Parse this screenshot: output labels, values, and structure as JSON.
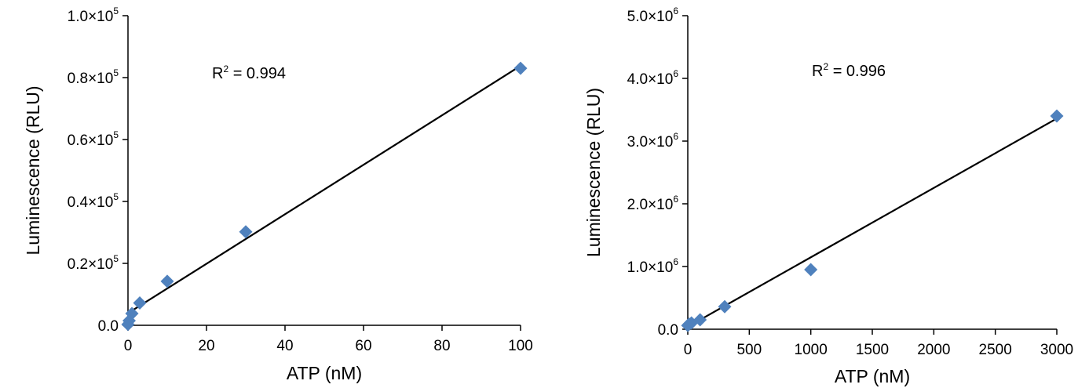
{
  "chart_data": [
    {
      "type": "scatter",
      "title": "",
      "xlabel": "ATP (nM)",
      "ylabel": "Luminescence (RLU)",
      "xlim": [
        0,
        100
      ],
      "ylim": [
        0,
        100000
      ],
      "x_ticks": [
        0,
        20,
        40,
        60,
        80,
        100
      ],
      "x_tick_labels": [
        "0",
        "20",
        "40",
        "60",
        "80",
        "100"
      ],
      "y_ticks": [
        0,
        20000,
        40000,
        60000,
        80000,
        100000
      ],
      "y_tick_mantissas": [
        "0.0",
        "0.2×10",
        "0.4×10",
        "0.6×10",
        "0.8×10",
        "1.0×10"
      ],
      "y_tick_exponents": [
        "",
        "5",
        "5",
        "5",
        "5",
        "5"
      ],
      "annotation": {
        "r2_prefix": "R",
        "r2_superscript": "2",
        "r2_value": " = 0.994"
      },
      "series": [
        {
          "x": [
            0,
            0.3,
            1,
            3,
            10,
            30,
            100
          ],
          "y": [
            300,
            1500,
            3800,
            7200,
            14200,
            30200,
            83000
          ]
        }
      ],
      "trendline": {
        "x": [
          0,
          100
        ],
        "y": [
          3900,
          83800
        ]
      },
      "marker_color": "#4f81bd",
      "line_color": "#000000"
    },
    {
      "type": "scatter",
      "title": "",
      "xlabel": "ATP (nM)",
      "ylabel": "Luminescence (RLU)",
      "xlim": [
        0,
        3000
      ],
      "ylim": [
        0,
        5000000
      ],
      "x_ticks": [
        0,
        500,
        1000,
        1500,
        2000,
        2500,
        3000
      ],
      "x_tick_labels": [
        "0",
        "500",
        "1000",
        "1500",
        "2000",
        "2500",
        "3000"
      ],
      "y_ticks": [
        0,
        1000000,
        2000000,
        3000000,
        4000000,
        5000000
      ],
      "y_tick_mantissas": [
        "0.0",
        "1.0×10",
        "2.0×10",
        "3.0×10",
        "4.0×10",
        "5.0×10"
      ],
      "y_tick_exponents": [
        "",
        "6",
        "6",
        "6",
        "6",
        "6"
      ],
      "annotation": {
        "r2_prefix": "R",
        "r2_superscript": "2",
        "r2_value": " = 0.996"
      },
      "series": [
        {
          "x": [
            0,
            10,
            30,
            100,
            300,
            1000,
            3000
          ],
          "y": [
            60000,
            80000,
            100000,
            150000,
            360000,
            950000,
            3400000
          ]
        }
      ],
      "trendline": {
        "x": [
          0,
          3000
        ],
        "y": [
          40000,
          3360000
        ]
      },
      "marker_color": "#4f81bd",
      "line_color": "#000000"
    }
  ]
}
